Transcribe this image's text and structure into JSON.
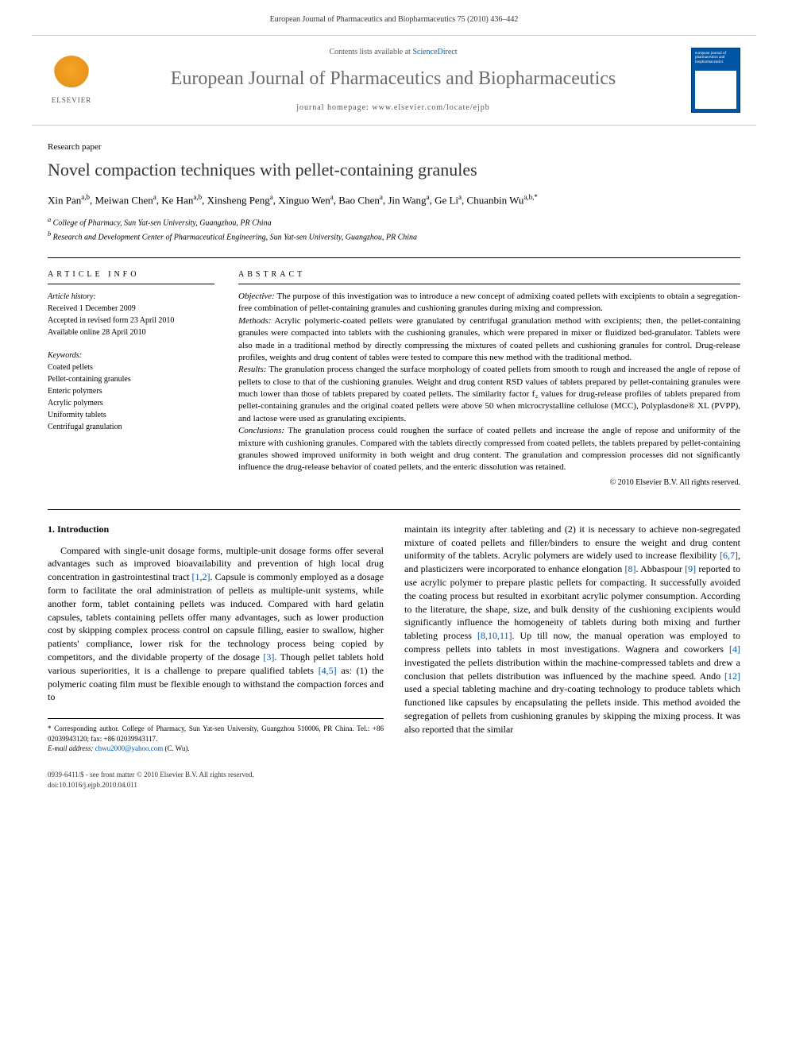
{
  "header": {
    "running_head": "European Journal of Pharmaceutics and Biopharmaceutics 75 (2010) 436–442"
  },
  "banner": {
    "publisher": "ELSEVIER",
    "contents_prefix": "Contents lists available at ",
    "contents_link": "ScienceDirect",
    "journal_name": "European Journal of Pharmaceutics and Biopharmaceutics",
    "homepage_prefix": "journal homepage: ",
    "homepage_url": "www.elsevier.com/locate/ejpb",
    "cover_title": "european journal of pharmaceutics and biopharmaceutics"
  },
  "article": {
    "type": "Research paper",
    "title": "Novel compaction techniques with pellet-containing granules",
    "authors_html": "Xin Pan<sup>a,b</sup>, Meiwan Chen<sup>a</sup>, Ke Han<sup>a,b</sup>, Xinsheng Peng<sup>a</sup>, Xinguo Wen<sup>a</sup>, Bao Chen<sup>a</sup>, Jin Wang<sup>a</sup>, Ge Li<sup>a</sup>, Chuanbin Wu<sup>a,b,*</sup>",
    "affiliations": [
      "a College of Pharmacy, Sun Yat-sen University, Guangzhou, PR China",
      "b Research and Development Center of Pharmaceutical Engineering, Sun Yat-sen University, Guangzhou, PR China"
    ]
  },
  "info": {
    "heading": "ARTICLE INFO",
    "history_label": "Article history:",
    "history": [
      "Received 1 December 2009",
      "Accepted in revised form 23 April 2010",
      "Available online 28 April 2010"
    ],
    "keywords_label": "Keywords:",
    "keywords": [
      "Coated pellets",
      "Pellet-containing granules",
      "Enteric polymers",
      "Acrylic polymers",
      "Uniformity tablets",
      "Centrifugal granulation"
    ]
  },
  "abstract": {
    "heading": "ABSTRACT",
    "objective_label": "Objective:",
    "objective": " The purpose of this investigation was to introduce a new concept of admixing coated pellets with excipients to obtain a segregation-free combination of pellet-containing granules and cushioning granules during mixing and compression.",
    "methods_label": "Methods:",
    "methods": " Acrylic polymeric-coated pellets were granulated by centrifugal granulation method with excipients; then, the pellet-containing granules were compacted into tablets with the cushioning granules, which were prepared in mixer or fluidized bed-granulator. Tablets were also made in a traditional method by directly compressing the mixtures of coated pellets and cushioning granules for control. Drug-release profiles, weights and drug content of tables were tested to compare this new method with the traditional method.",
    "results_label": "Results:",
    "results": " The granulation process changed the surface morphology of coated pellets from smooth to rough and increased the angle of repose of pellets to close to that of the cushioning granules. Weight and drug content RSD values of tablets prepared by pellet-containing granules were much lower than those of tablets prepared by coated pellets. The similarity factor f₂ values for drug-release profiles of tablets prepared from pellet-containing granules and the original coated pellets were above 50 when microcrystalline cellulose (MCC), Polyplasdone® XL (PVPP), and lactose were used as granulating excipients.",
    "conclusions_label": "Conclusions:",
    "conclusions": " The granulation process could roughen the surface of coated pellets and increase the angle of repose and uniformity of the mixture with cushioning granules. Compared with the tablets directly compressed from coated pellets, the tablets prepared by pellet-containing granules showed improved uniformity in both weight and drug content. The granulation and compression processes did not significantly influence the drug-release behavior of coated pellets, and the enteric dissolution was retained.",
    "copyright": "© 2010 Elsevier B.V. All rights reserved."
  },
  "body": {
    "intro_heading": "1. Introduction",
    "col1_p1a": "Compared with single-unit dosage forms, multiple-unit dosage forms offer several advantages such as improved bioavailability and prevention of high local drug concentration in gastrointestinal tract ",
    "col1_ref1": "[1,2]",
    "col1_p1b": ". Capsule is commonly employed as a dosage form to facilitate the oral administration of pellets as multiple-unit systems, while another form, tablet containing pellets was induced. Compared with hard gelatin capsules, tablets containing pellets offer many advantages, such as lower production cost by skipping complex process control on capsule filling, easier to swallow, higher patients' compliance, lower risk for the technology process being copied by competitors, and the dividable property of the dosage ",
    "col1_ref2": "[3]",
    "col1_p1c": ". Though pellet tablets hold various superiorities, it is a challenge to prepare qualified tablets ",
    "col1_ref3": "[4,5]",
    "col1_p1d": " as: (1) the polymeric coating film must be flexible enough to withstand the compaction forces and to",
    "col2_p1a": "maintain its integrity after tableting and (2) it is necessary to achieve non-segregated mixture of coated pellets and filler/binders to ensure the weight and drug content uniformity of the tablets. Acrylic polymers are widely used to increase flexibility ",
    "col2_ref1": "[6,7]",
    "col2_p1b": ", and plasticizers were incorporated to enhance elongation ",
    "col2_ref2": "[8]",
    "col2_p1c": ". Abbaspour ",
    "col2_ref3": "[9]",
    "col2_p1d": " reported to use acrylic polymer to prepare plastic pellets for compacting. It successfully avoided the coating process but resulted in exorbitant acrylic polymer consumption. According to the literature, the shape, size, and bulk density of the cushioning excipients would significantly influence the homogeneity of tablets during both mixing and further tableting process ",
    "col2_ref4": "[8,10,11]",
    "col2_p1e": ". Up till now, the manual operation was employed to compress pellets into tablets in most investigations. Wagnera and coworkers ",
    "col2_ref5": "[4]",
    "col2_p1f": " investigated the pellets distribution within the machine-compressed tablets and drew a conclusion that pellets distribution was influenced by the machine speed. Ando ",
    "col2_ref6": "[12]",
    "col2_p1g": " used a special tableting machine and dry-coating technology to produce tablets which functioned like capsules by encapsulating the pellets inside. This method avoided the segregation of pellets from cushioning granules by skipping the mixing process. It was also reported that the similar"
  },
  "footnote": {
    "corr": "* Corresponding author. College of Pharmacy, Sun Yat-sen University, Guangzhou 510006, PR China. Tel.: +86 02039943120; fax: +86 02039943117.",
    "email_label": "E-mail address:",
    "email": "chwu2000@yahoo.com",
    "email_name": "(C. Wu)."
  },
  "footer": {
    "line1": "0939-6411/$ - see front matter © 2010 Elsevier B.V. All rights reserved.",
    "line2": "doi:10.1016/j.ejpb.2010.04.011"
  },
  "colors": {
    "link": "#0055a5",
    "journal_gray": "#6b6b6b",
    "elsevier_orange": "#e8941e",
    "cover_blue": "#0055a5"
  }
}
